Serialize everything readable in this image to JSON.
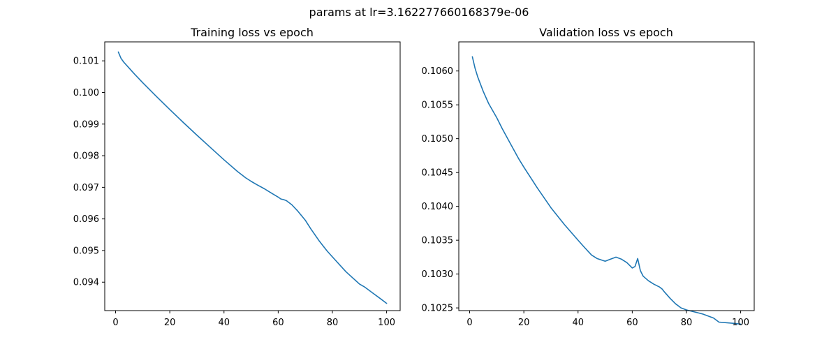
{
  "suptitle": "params at lr=3.162277660168379e-06",
  "chart_data": [
    {
      "type": "line",
      "title": "Training loss vs epoch",
      "xlabel": "",
      "ylabel": "",
      "xlim": [
        -4,
        105
      ],
      "ylim": [
        0.0931,
        0.1016
      ],
      "xticks": [
        0,
        20,
        40,
        60,
        80,
        100
      ],
      "yticks": [
        0.094,
        0.095,
        0.096,
        0.097,
        0.098,
        0.099,
        0.1,
        0.101
      ],
      "ytick_labels": [
        "0.094",
        "0.095",
        "0.096",
        "0.097",
        "0.098",
        "0.099",
        "0.100",
        "0.101"
      ],
      "grid": false,
      "color": "#1f77b4",
      "series": [
        {
          "x": [
            1,
            2,
            3,
            5,
            7,
            10,
            15,
            20,
            25,
            30,
            35,
            40,
            45,
            48,
            50,
            52,
            55,
            58,
            60,
            61,
            62,
            63,
            65,
            67,
            70,
            72,
            75,
            78,
            80,
            85,
            90,
            92,
            95,
            98,
            100
          ],
          "values": [
            0.10128,
            0.10108,
            0.10096,
            0.10077,
            0.10058,
            0.10031,
            0.09988,
            0.09946,
            0.09905,
            0.09865,
            0.09826,
            0.09787,
            0.0975,
            0.0973,
            0.09719,
            0.09709,
            0.09695,
            0.09679,
            0.09669,
            0.09663,
            0.09661,
            0.09658,
            0.09645,
            0.09627,
            0.09596,
            0.09569,
            0.09532,
            0.09499,
            0.0948,
            0.09433,
            0.09394,
            0.09384,
            0.09365,
            0.09346,
            0.09333
          ]
        }
      ]
    },
    {
      "type": "line",
      "title": "Validation loss vs epoch",
      "xlabel": "",
      "ylabel": "",
      "xlim": [
        -4,
        105
      ],
      "ylim": [
        0.10246,
        0.10643
      ],
      "xticks": [
        0,
        20,
        40,
        60,
        80,
        100
      ],
      "yticks": [
        0.1025,
        0.103,
        0.1035,
        0.104,
        0.1045,
        0.105,
        0.1055,
        0.106
      ],
      "ytick_labels": [
        "0.1025",
        "0.1030",
        "0.1035",
        "0.1040",
        "0.1045",
        "0.1050",
        "0.1055",
        "0.1060"
      ],
      "grid": false,
      "color": "#1f77b4",
      "series": [
        {
          "x": [
            1,
            2,
            3,
            5,
            7,
            10,
            12,
            15,
            18,
            20,
            25,
            30,
            35,
            40,
            42,
            45,
            47,
            50,
            52,
            54,
            56,
            58,
            60,
            61,
            62,
            63,
            64,
            66,
            68,
            70,
            71,
            72,
            74,
            76,
            78,
            80,
            82,
            84,
            86,
            88,
            90,
            92,
            95,
            98,
            100
          ],
          "values": [
            0.10621,
            0.10604,
            0.10591,
            0.1057,
            0.10552,
            0.10531,
            0.10515,
            0.10493,
            0.10471,
            0.10458,
            0.10427,
            0.10398,
            0.10373,
            0.1035,
            0.10341,
            0.10328,
            0.10323,
            0.10319,
            0.10322,
            0.10325,
            0.10322,
            0.10317,
            0.10309,
            0.10311,
            0.10323,
            0.10305,
            0.10297,
            0.1029,
            0.10285,
            0.10281,
            0.10278,
            0.10273,
            0.10264,
            0.10256,
            0.1025,
            0.10247,
            0.10245,
            0.10243,
            0.10241,
            0.10238,
            0.10235,
            0.10229,
            0.10228,
            0.10227,
            0.10226
          ]
        }
      ]
    }
  ]
}
